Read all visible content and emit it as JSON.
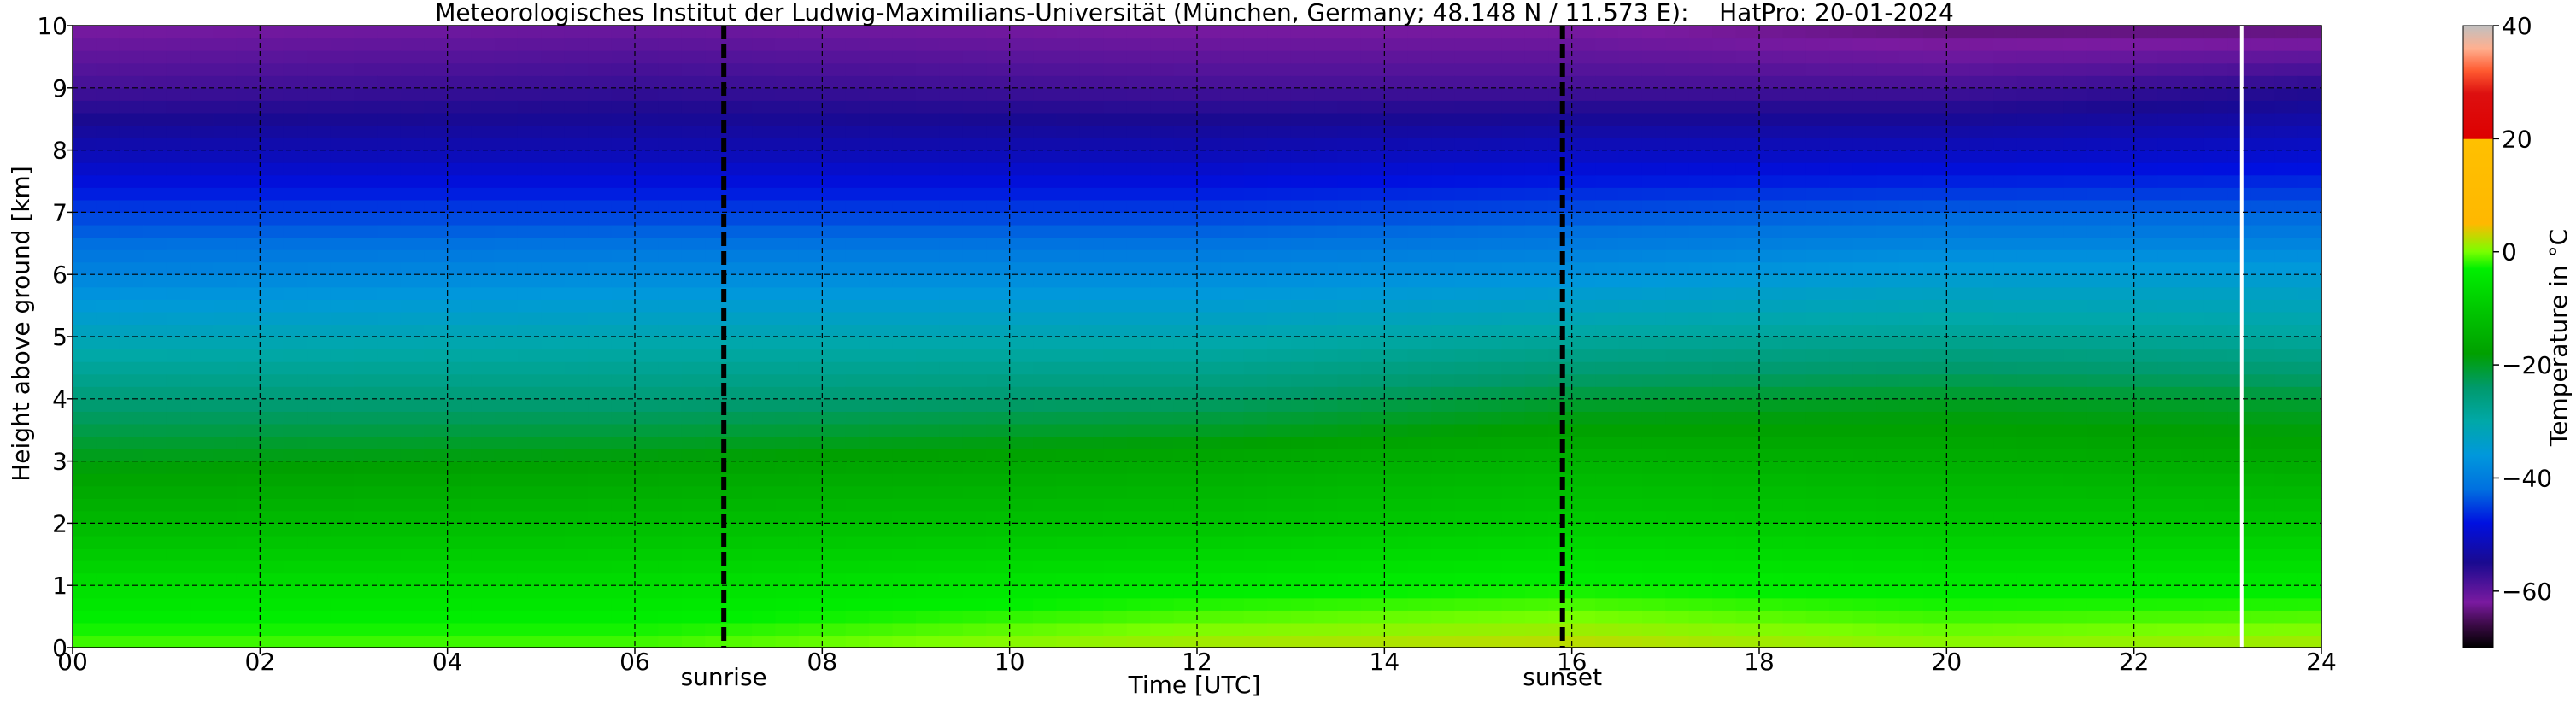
{
  "chart_data": {
    "type": "heatmap",
    "title": "Meteorologisches Institut der Ludwig-Maximilians-Universität (München, Germany; 48.148 N / 11.573 E):    HatPro: 20-01-2024",
    "xlabel": "Time [UTC]",
    "ylabel": "Height above ground [km]",
    "xlim": [
      0,
      24
    ],
    "ylim": [
      0,
      10
    ],
    "x_ticks": [
      {
        "value": 0,
        "label": "00"
      },
      {
        "value": 2,
        "label": "02"
      },
      {
        "value": 4,
        "label": "04"
      },
      {
        "value": 6,
        "label": "06"
      },
      {
        "value": 8,
        "label": "08"
      },
      {
        "value": 10,
        "label": "10"
      },
      {
        "value": 12,
        "label": "12"
      },
      {
        "value": 14,
        "label": "14"
      },
      {
        "value": 16,
        "label": "16"
      },
      {
        "value": 18,
        "label": "18"
      },
      {
        "value": 20,
        "label": "20"
      },
      {
        "value": 22,
        "label": "22"
      },
      {
        "value": 24,
        "label": "24"
      }
    ],
    "y_ticks": [
      {
        "value": 0,
        "label": "0"
      },
      {
        "value": 1,
        "label": "1"
      },
      {
        "value": 2,
        "label": "2"
      },
      {
        "value": 3,
        "label": "3"
      },
      {
        "value": 4,
        "label": "4"
      },
      {
        "value": 5,
        "label": "5"
      },
      {
        "value": 6,
        "label": "6"
      },
      {
        "value": 7,
        "label": "7"
      },
      {
        "value": 8,
        "label": "8"
      },
      {
        "value": 9,
        "label": "9"
      },
      {
        "value": 10,
        "label": "10"
      }
    ],
    "grid": true,
    "markers": [
      {
        "label": "sunrise",
        "time": 6.95
      },
      {
        "label": "sunset",
        "time": 15.9
      }
    ],
    "data_gap_time": 23.15,
    "temperature_profiles": {
      "heights_km": [
        0,
        1,
        2,
        3,
        4,
        5,
        6,
        7,
        8,
        9,
        10
      ],
      "times_utc": [
        0,
        6,
        12,
        16,
        20,
        24
      ],
      "temperature_c": [
        [
          -1,
          -6,
          -13,
          -19,
          -25,
          -32,
          -39,
          -45,
          -52,
          -58,
          -62
        ],
        [
          -1,
          -6,
          -12,
          -18,
          -25,
          -31,
          -38,
          -45,
          -52,
          -57,
          -61
        ],
        [
          2,
          -4,
          -11,
          -16,
          -24,
          -31,
          -38,
          -45,
          -52,
          -58,
          -62
        ],
        [
          3,
          -3,
          -9,
          -14,
          -21,
          -29,
          -37,
          -44,
          -51,
          -58,
          -62
        ],
        [
          1,
          -4,
          -10,
          -15,
          -20,
          -28,
          -35,
          -43,
          -51,
          -58,
          -64
        ],
        [
          2,
          -4,
          -10,
          -16,
          -21,
          -29,
          -35,
          -43,
          -50,
          -56,
          -64
        ]
      ]
    },
    "colorbar": {
      "label": "Temperature in °C",
      "min": -70,
      "max": 40,
      "ticks": [
        {
          "value": 40,
          "label": "40"
        },
        {
          "value": 20,
          "label": "20"
        },
        {
          "value": 0,
          "label": "0"
        },
        {
          "value": -20,
          "label": "−20"
        },
        {
          "value": -40,
          "label": "−40"
        },
        {
          "value": -60,
          "label": "−60"
        }
      ],
      "stops": [
        {
          "t": -70,
          "color": "#000000"
        },
        {
          "t": -66,
          "color": "#3a0a45"
        },
        {
          "t": -62,
          "color": "#7a1aa0"
        },
        {
          "t": -55,
          "color": "#1a0a90"
        },
        {
          "t": -48,
          "color": "#0010e0"
        },
        {
          "t": -42,
          "color": "#0070e0"
        },
        {
          "t": -36,
          "color": "#0098dc"
        },
        {
          "t": -30,
          "color": "#00a8a8"
        },
        {
          "t": -24,
          "color": "#009a6c"
        },
        {
          "t": -18,
          "color": "#00a000"
        },
        {
          "t": -10,
          "color": "#00c800"
        },
        {
          "t": -3,
          "color": "#00f000"
        },
        {
          "t": 0,
          "color": "#7aff00"
        },
        {
          "t": 5,
          "color": "#ffb800"
        },
        {
          "t": 19.9,
          "color": "#ffc000"
        },
        {
          "t": 20,
          "color": "#dd0000"
        },
        {
          "t": 28,
          "color": "#dd1010"
        },
        {
          "t": 32,
          "color": "#ff5a30"
        },
        {
          "t": 36,
          "color": "#ffb090"
        },
        {
          "t": 40,
          "color": "#c0c0c0"
        }
      ]
    }
  }
}
